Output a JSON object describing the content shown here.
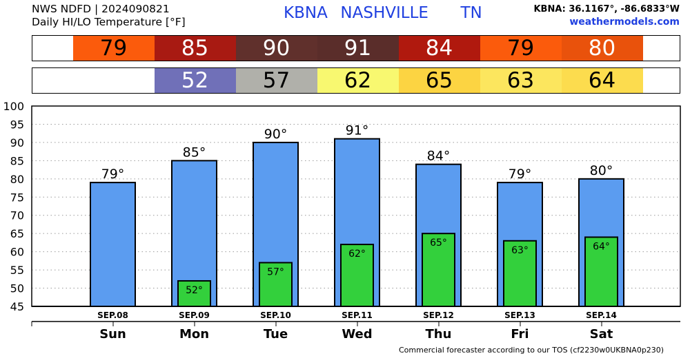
{
  "header": {
    "line1": "NWS NDFD | 2024090821",
    "line2": "Daily HI/LO Temperature [°F]",
    "station_title": "KBNA  NASHVILLE     TN",
    "coords": "KBNA: 36.1167°, -86.6833°W",
    "site": "weathermodels.com"
  },
  "footer": "Commercial forecaster according to our TOS (cf2230w0UKBNA0p230)",
  "strips": {
    "hi": [
      {
        "value": "79",
        "bg": "#fb5b0c",
        "fg": "#000000"
      },
      {
        "value": "85",
        "bg": "#a81a12",
        "fg": "#ffffff"
      },
      {
        "value": "90",
        "bg": "#60302c",
        "fg": "#ffffff"
      },
      {
        "value": "91",
        "bg": "#5a2d2a",
        "fg": "#ffffff"
      },
      {
        "value": "84",
        "bg": "#b0190e",
        "fg": "#ffffff"
      },
      {
        "value": "79",
        "bg": "#fb5b0c",
        "fg": "#000000"
      },
      {
        "value": "80",
        "bg": "#e9520c",
        "fg": "#ffffff"
      }
    ],
    "lo": [
      {
        "value": "",
        "bg": "#ffffff",
        "fg": "#000000"
      },
      {
        "value": "52",
        "bg": "#7070b8",
        "fg": "#ffffff"
      },
      {
        "value": "57",
        "bg": "#b0b0aa",
        "fg": "#000000"
      },
      {
        "value": "62",
        "bg": "#f8f870",
        "fg": "#000000"
      },
      {
        "value": "65",
        "bg": "#fcd442",
        "fg": "#000000"
      },
      {
        "value": "63",
        "bg": "#fce65e",
        "fg": "#000000"
      },
      {
        "value": "64",
        "bg": "#fcdc4e",
        "fg": "#000000"
      }
    ]
  },
  "chart_data": {
    "type": "bar",
    "categories": [
      "Sun",
      "Mon",
      "Tue",
      "Wed",
      "Thu",
      "Fri",
      "Sat"
    ],
    "dates": [
      "SEP.08",
      "SEP.09",
      "SEP.10",
      "SEP.11",
      "SEP.12",
      "SEP.13",
      "SEP.14"
    ],
    "series": [
      {
        "name": "",
        "values": [
          79,
          85,
          90,
          91,
          84,
          79,
          80
        ],
        "color": "#5b9cf0"
      },
      {
        "name": "",
        "values": [
          null,
          52,
          57,
          62,
          65,
          63,
          64
        ],
        "color": "#33d03c"
      }
    ],
    "hi_labels": [
      "79°",
      "85°",
      "90°",
      "91°",
      "84°",
      "79°",
      "80°"
    ],
    "lo_labels": [
      "",
      "52°",
      "57°",
      "62°",
      "65°",
      "63°",
      "64°"
    ],
    "ylim": [
      45,
      100
    ],
    "yticks": [
      "45",
      "50",
      "55",
      "60",
      "65",
      "70",
      "75",
      "80",
      "85",
      "90",
      "95",
      "100"
    ],
    "grid": true
  }
}
